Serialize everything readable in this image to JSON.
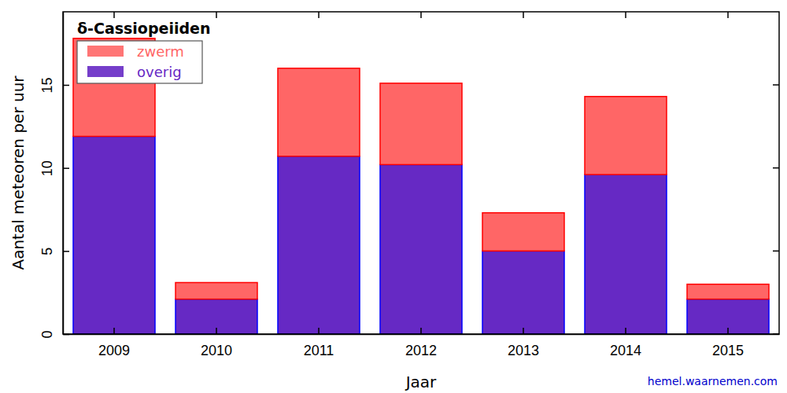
{
  "chart_data": {
    "type": "bar",
    "title": "δ-Cassiopeiiden",
    "x_label": "Jaar",
    "y_label": "Aantal meteoren per uur",
    "categories": [
      "2009",
      "2010",
      "2011",
      "2012",
      "2013",
      "2014",
      "2015"
    ],
    "series": [
      {
        "name": "overig",
        "color": "#6629c4",
        "values": [
          11.9,
          2.1,
          10.7,
          10.2,
          5.0,
          9.6,
          2.1
        ]
      },
      {
        "name": "zwerm",
        "color": "#ff6666",
        "values": [
          5.9,
          1.0,
          5.3,
          4.9,
          2.3,
          4.7,
          0.9
        ]
      }
    ],
    "stacked": true,
    "legend": "upper left",
    "ylim": [
      0,
      19.4
    ],
    "yticks": [
      0,
      5,
      10,
      15
    ],
    "annotations": [
      "hemel.waarnemen.com"
    ]
  }
}
